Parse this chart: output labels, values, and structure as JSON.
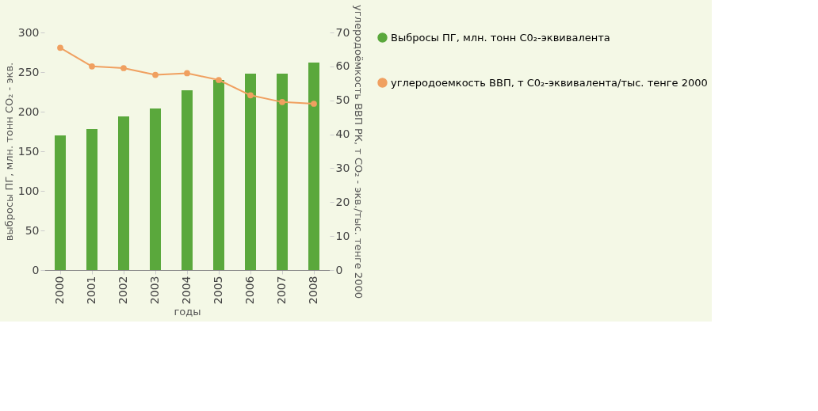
{
  "chart_data": {
    "type": "bar",
    "xlabel": "годы",
    "ylabel": "выбросы ПГ, млн. тонн CO₂ - экв.",
    "y2label": "углеродоёмкость ВВП РК, т CO₂ - экв./тыс. тенге 2000",
    "categories": [
      "2000",
      "2001",
      "2002",
      "2003",
      "2004",
      "2005",
      "2006",
      "2007",
      "2008"
    ],
    "series": [
      {
        "name": "Выбросы ПГ, млн. тонн C0₂-эквивалента",
        "color": "#5aa83c",
        "values": [
          170,
          178,
          194,
          204,
          227,
          240,
          248,
          248,
          262
        ]
      },
      {
        "name": "углеродоемкость ВВП, т C0₂-эквивалента/тыс. тенге 2000",
        "type": "line",
        "axis": "y2",
        "color": "#f0a060",
        "marker": "circle",
        "values": [
          65.5,
          60,
          59.5,
          57.5,
          58,
          56,
          51.5,
          49.5,
          49
        ]
      }
    ],
    "ylim": [
      0,
      300
    ],
    "yticks": [
      0,
      50,
      100,
      150,
      200,
      250,
      300
    ],
    "y2lim": [
      0,
      70
    ],
    "y2ticks": [
      0,
      10,
      20,
      30,
      40,
      50,
      60,
      70
    ],
    "grid": false,
    "legend": "right"
  }
}
